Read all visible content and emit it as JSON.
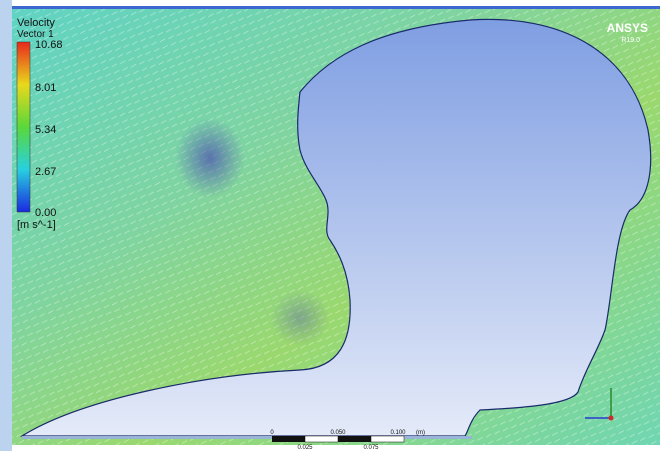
{
  "legend": {
    "title": "Velocity",
    "subtitle": "Vector 1",
    "ticks": [
      "10.68",
      "8.01",
      "5.34",
      "2.67",
      "0.00"
    ],
    "unit": "[m s^-1]"
  },
  "logo": {
    "brand": "ANSYS",
    "version": "R19.0"
  },
  "scale_bar": {
    "top_labels": [
      "0",
      "0.050",
      "0.100",
      "(m)"
    ],
    "bottom_labels": [
      "0.025",
      "0.075"
    ]
  }
}
